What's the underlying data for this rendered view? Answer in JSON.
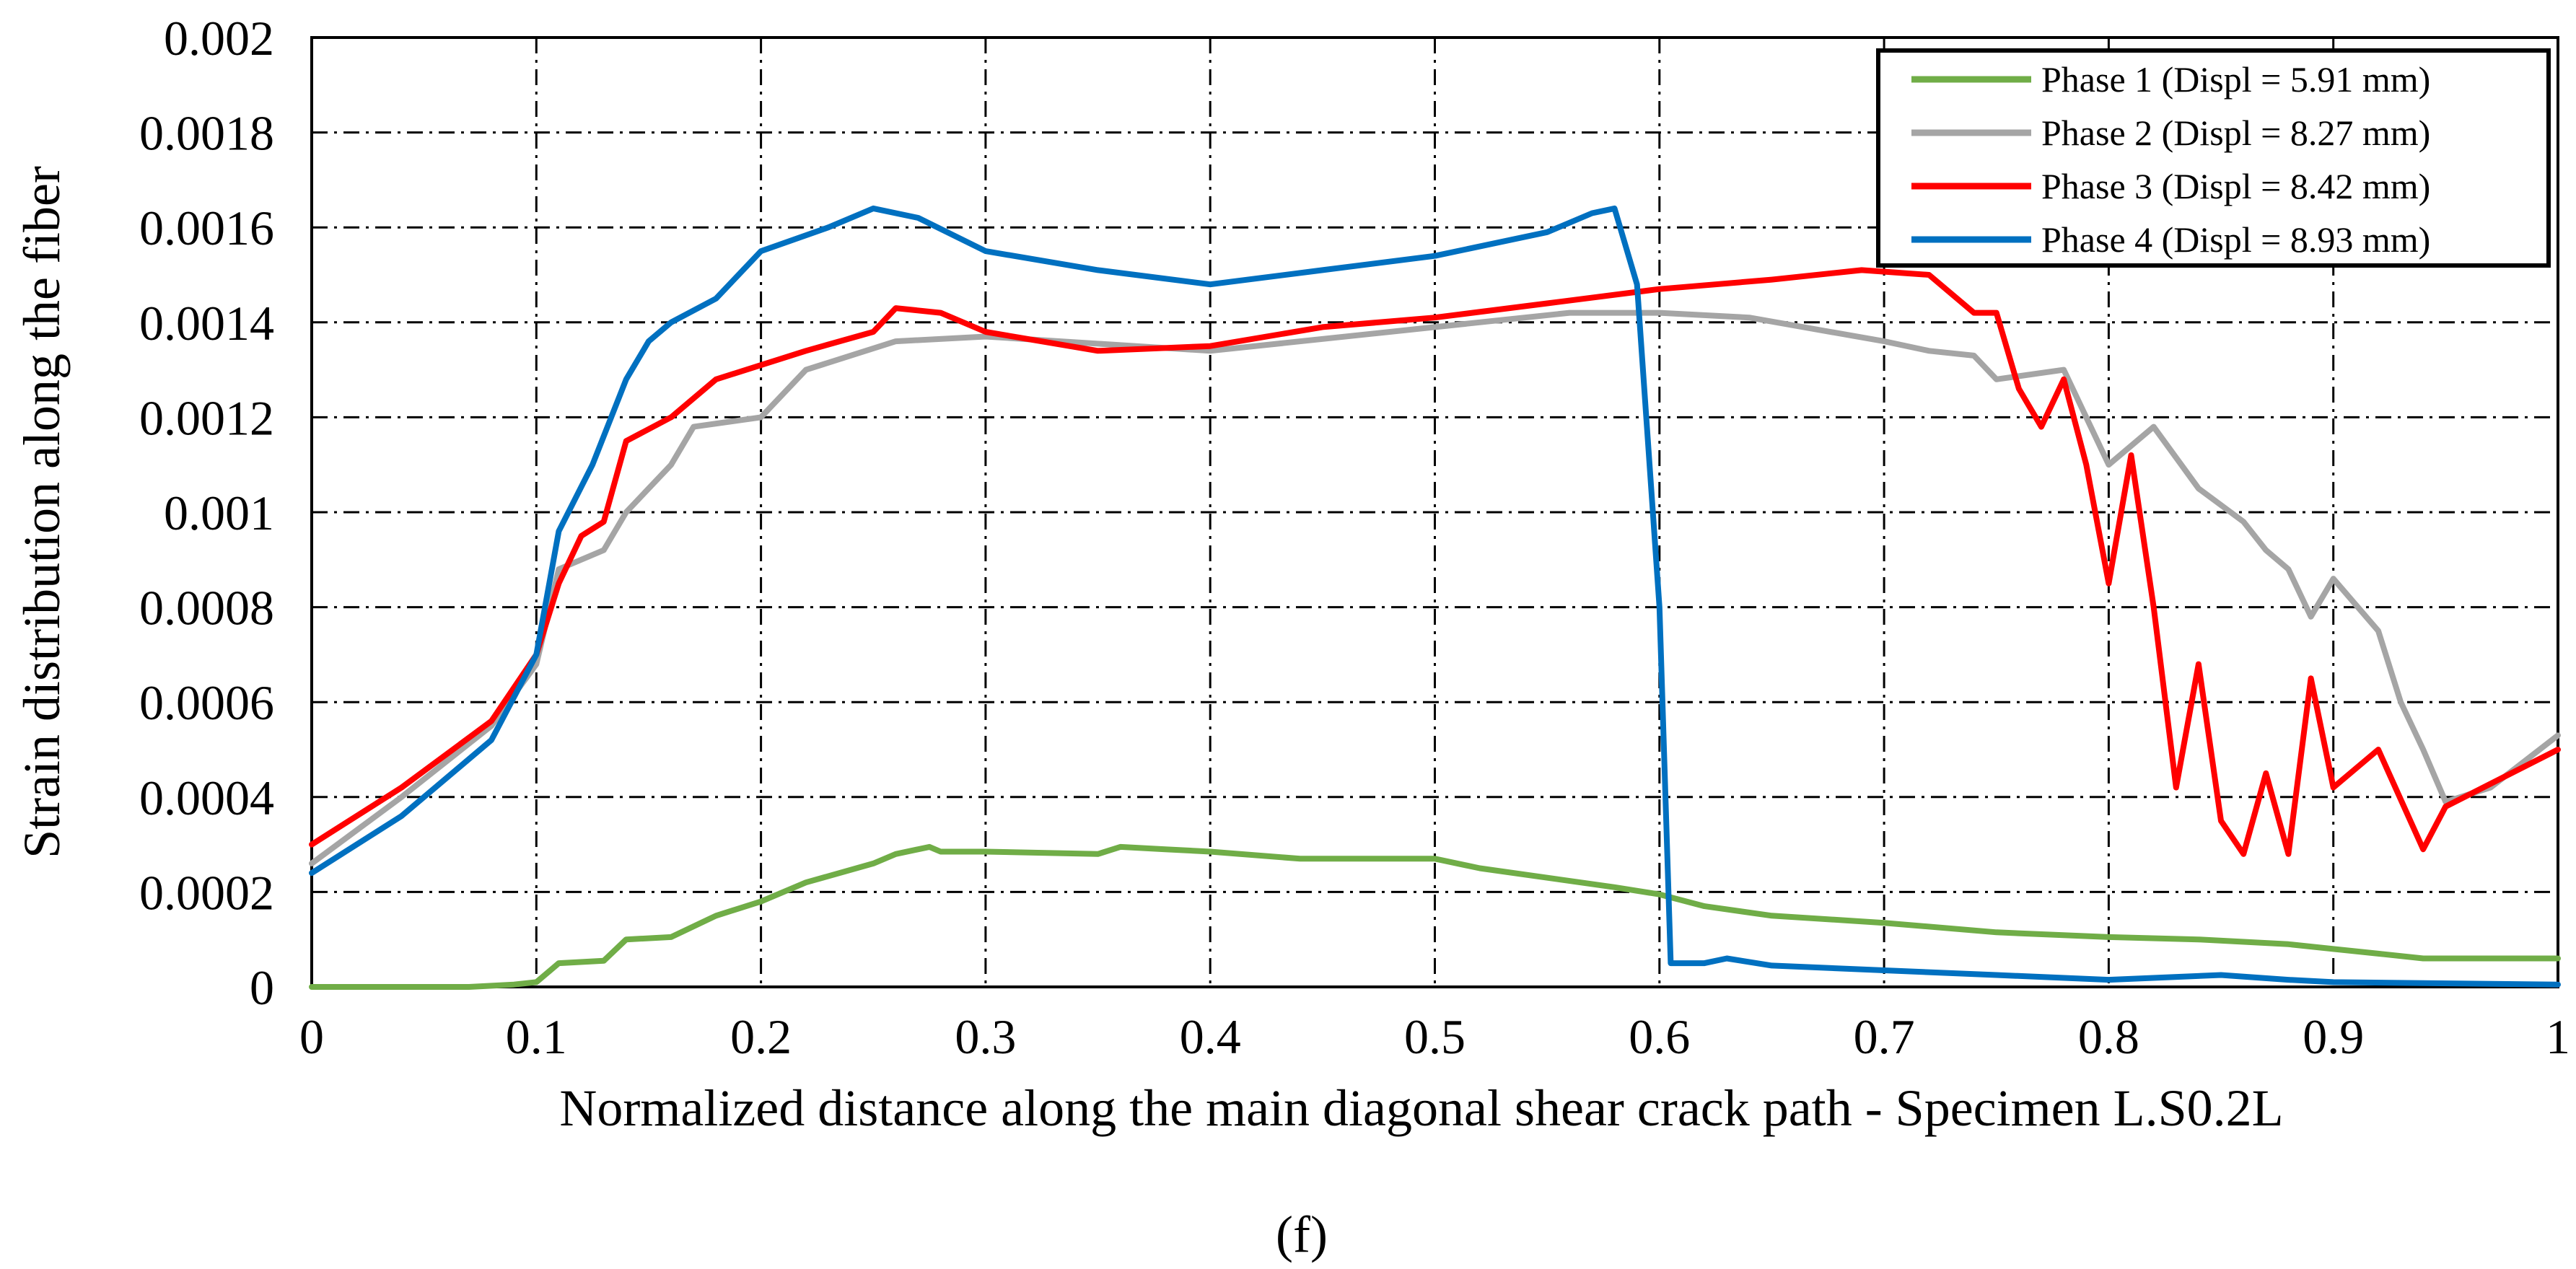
{
  "chart_data": {
    "type": "line",
    "xlabel": "Normalized distance along the main diagonal shear crack  path  - Specimen L.S0.2L",
    "ylabel": "Strain distribution along the fiber",
    "caption": "(f)",
    "xlim": [
      0,
      1
    ],
    "ylim": [
      0,
      0.002
    ],
    "x_ticks": [
      "0",
      "0.1",
      "0.2",
      "0.3",
      "0.4",
      "0.5",
      "0.6",
      "0.7",
      "0.8",
      "0.9",
      "1"
    ],
    "y_ticks": [
      "0",
      "0.0002",
      "0.0004",
      "0.0006",
      "0.0008",
      "0.001",
      "0.0012",
      "0.0014",
      "0.0016",
      "0.0018",
      "0.002"
    ],
    "grid": true,
    "legend_position": "top-right",
    "series": [
      {
        "name": "Phase 1 (Displ = 5.91 mm)",
        "color": "#70ad47",
        "points": [
          [
            0,
            0
          ],
          [
            0.07,
            0
          ],
          [
            0.09,
            5e-06
          ],
          [
            0.1,
            1e-05
          ],
          [
            0.11,
            5e-05
          ],
          [
            0.13,
            5.5e-05
          ],
          [
            0.14,
            0.0001
          ],
          [
            0.16,
            0.000105
          ],
          [
            0.18,
            0.00015
          ],
          [
            0.2,
            0.00018
          ],
          [
            0.22,
            0.00022
          ],
          [
            0.25,
            0.00026
          ],
          [
            0.26,
            0.00028
          ],
          [
            0.275,
            0.000295
          ],
          [
            0.28,
            0.000285
          ],
          [
            0.3,
            0.000285
          ],
          [
            0.35,
            0.00028
          ],
          [
            0.36,
            0.000295
          ],
          [
            0.38,
            0.00029
          ],
          [
            0.4,
            0.000285
          ],
          [
            0.44,
            0.00027
          ],
          [
            0.5,
            0.00027
          ],
          [
            0.52,
            0.00025
          ],
          [
            0.58,
            0.00021
          ],
          [
            0.6,
            0.000195
          ],
          [
            0.62,
            0.00017
          ],
          [
            0.65,
            0.00015
          ],
          [
            0.7,
            0.000135
          ],
          [
            0.75,
            0.000115
          ],
          [
            0.8,
            0.000105
          ],
          [
            0.84,
            0.0001
          ],
          [
            0.88,
            9e-05
          ],
          [
            0.9,
            8e-05
          ],
          [
            0.92,
            7e-05
          ],
          [
            0.94,
            6e-05
          ],
          [
            1,
            6e-05
          ]
        ]
      },
      {
        "name": "Phase 2 (Displ = 8.27 mm)",
        "color": "#a5a5a5",
        "points": [
          [
            0,
            0.00026
          ],
          [
            0.04,
            0.0004
          ],
          [
            0.08,
            0.00055
          ],
          [
            0.1,
            0.00068
          ],
          [
            0.11,
            0.00088
          ],
          [
            0.13,
            0.00092
          ],
          [
            0.14,
            0.001
          ],
          [
            0.16,
            0.0011
          ],
          [
            0.17,
            0.00118
          ],
          [
            0.2,
            0.0012
          ],
          [
            0.22,
            0.0013
          ],
          [
            0.26,
            0.00136
          ],
          [
            0.3,
            0.00137
          ],
          [
            0.4,
            0.00134
          ],
          [
            0.5,
            0.00139
          ],
          [
            0.56,
            0.00142
          ],
          [
            0.6,
            0.00142
          ],
          [
            0.64,
            0.00141
          ],
          [
            0.7,
            0.00136
          ],
          [
            0.72,
            0.00134
          ],
          [
            0.74,
            0.00133
          ],
          [
            0.75,
            0.00128
          ],
          [
            0.78,
            0.0013
          ],
          [
            0.8,
            0.0011
          ],
          [
            0.82,
            0.00118
          ],
          [
            0.84,
            0.00105
          ],
          [
            0.86,
            0.00098
          ],
          [
            0.87,
            0.00092
          ],
          [
            0.88,
            0.00088
          ],
          [
            0.89,
            0.00078
          ],
          [
            0.9,
            0.00086
          ],
          [
            0.92,
            0.00075
          ],
          [
            0.93,
            0.0006
          ],
          [
            0.94,
            0.0005
          ],
          [
            0.95,
            0.00039
          ],
          [
            0.97,
            0.00042
          ],
          [
            1,
            0.00053
          ]
        ]
      },
      {
        "name": "Phase 3 (Displ = 8.42 mm)",
        "color": "#ff0000",
        "points": [
          [
            0,
            0.0003
          ],
          [
            0.04,
            0.00042
          ],
          [
            0.08,
            0.00056
          ],
          [
            0.1,
            0.0007
          ],
          [
            0.11,
            0.00085
          ],
          [
            0.12,
            0.00095
          ],
          [
            0.13,
            0.00098
          ],
          [
            0.14,
            0.00115
          ],
          [
            0.16,
            0.0012
          ],
          [
            0.18,
            0.00128
          ],
          [
            0.22,
            0.00134
          ],
          [
            0.25,
            0.00138
          ],
          [
            0.26,
            0.00143
          ],
          [
            0.28,
            0.00142
          ],
          [
            0.3,
            0.00138
          ],
          [
            0.35,
            0.00134
          ],
          [
            0.4,
            0.00135
          ],
          [
            0.45,
            0.00139
          ],
          [
            0.5,
            0.00141
          ],
          [
            0.55,
            0.00144
          ],
          [
            0.6,
            0.00147
          ],
          [
            0.65,
            0.00149
          ],
          [
            0.69,
            0.00151
          ],
          [
            0.72,
            0.0015
          ],
          [
            0.74,
            0.00142
          ],
          [
            0.75,
            0.00142
          ],
          [
            0.76,
            0.00126
          ],
          [
            0.77,
            0.00118
          ],
          [
            0.78,
            0.00128
          ],
          [
            0.79,
            0.0011
          ],
          [
            0.8,
            0.00085
          ],
          [
            0.81,
            0.00112
          ],
          [
            0.82,
            0.0008
          ],
          [
            0.83,
            0.00042
          ],
          [
            0.84,
            0.00068
          ],
          [
            0.85,
            0.00035
          ],
          [
            0.86,
            0.00028
          ],
          [
            0.87,
            0.00045
          ],
          [
            0.88,
            0.00028
          ],
          [
            0.89,
            0.00065
          ],
          [
            0.9,
            0.00042
          ],
          [
            0.92,
            0.0005
          ],
          [
            0.94,
            0.00029
          ],
          [
            0.95,
            0.00038
          ],
          [
            1,
            0.0005
          ]
        ]
      },
      {
        "name": "Phase 4 (Displ = 8.93 mm)",
        "color": "#0070c0",
        "points": [
          [
            0,
            0.00024
          ],
          [
            0.04,
            0.00036
          ],
          [
            0.08,
            0.00052
          ],
          [
            0.1,
            0.0007
          ],
          [
            0.11,
            0.00096
          ],
          [
            0.125,
            0.0011
          ],
          [
            0.14,
            0.00128
          ],
          [
            0.15,
            0.00136
          ],
          [
            0.16,
            0.0014
          ],
          [
            0.18,
            0.00145
          ],
          [
            0.2,
            0.00155
          ],
          [
            0.23,
            0.0016
          ],
          [
            0.25,
            0.00164
          ],
          [
            0.27,
            0.00162
          ],
          [
            0.3,
            0.00155
          ],
          [
            0.35,
            0.00151
          ],
          [
            0.4,
            0.00148
          ],
          [
            0.45,
            0.00151
          ],
          [
            0.5,
            0.00154
          ],
          [
            0.55,
            0.00159
          ],
          [
            0.57,
            0.00163
          ],
          [
            0.58,
            0.00164
          ],
          [
            0.59,
            0.00148
          ],
          [
            0.6,
            0.0008
          ],
          [
            0.605,
            5e-05
          ],
          [
            0.62,
            5e-05
          ],
          [
            0.63,
            6e-05
          ],
          [
            0.65,
            4.5e-05
          ],
          [
            0.7,
            3.5e-05
          ],
          [
            0.75,
            2.5e-05
          ],
          [
            0.8,
            1.5e-05
          ],
          [
            0.85,
            2.5e-05
          ],
          [
            0.88,
            1.5e-05
          ],
          [
            0.9,
            1e-05
          ],
          [
            1,
            5e-06
          ]
        ]
      }
    ]
  }
}
